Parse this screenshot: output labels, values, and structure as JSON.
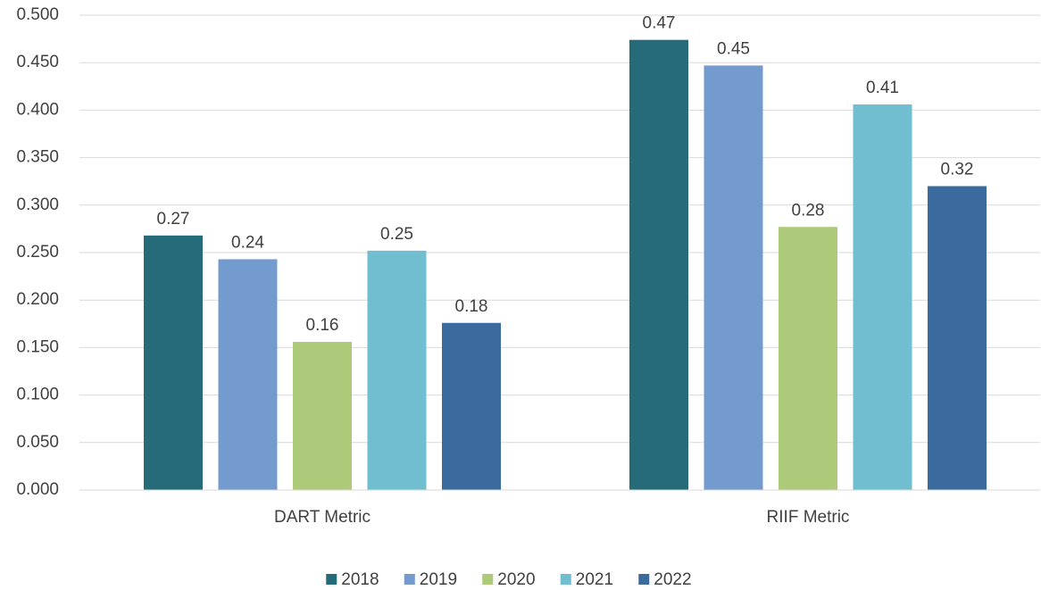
{
  "chart_data": {
    "type": "bar",
    "categories": [
      "DART Metric",
      "RIIF Metric"
    ],
    "series": [
      {
        "name": "2018",
        "color": "#266b7a",
        "values": [
          0.268,
          0.474
        ],
        "value_labels": [
          "0.27",
          "0.47"
        ]
      },
      {
        "name": "2019",
        "color": "#739bcf",
        "values": [
          0.243,
          0.447
        ],
        "value_labels": [
          "0.24",
          "0.45"
        ]
      },
      {
        "name": "2020",
        "color": "#adc97a",
        "values": [
          0.156,
          0.277
        ],
        "value_labels": [
          "0.16",
          "0.28"
        ]
      },
      {
        "name": "2021",
        "color": "#71bed1",
        "values": [
          0.252,
          0.406
        ],
        "value_labels": [
          "0.25",
          "0.41"
        ]
      },
      {
        "name": "2022",
        "color": "#3b6a9e",
        "values": [
          0.176,
          0.32
        ],
        "value_labels": [
          "0.18",
          "0.32"
        ]
      }
    ],
    "ylim": [
      0,
      0.5
    ],
    "yticks": [
      {
        "value": 0,
        "label": "0.000"
      },
      {
        "value": 0.05,
        "label": "0.050"
      },
      {
        "value": 0.1,
        "label": "0.100"
      },
      {
        "value": 0.15,
        "label": "0.150"
      },
      {
        "value": 0.2,
        "label": "0.200"
      },
      {
        "value": 0.25,
        "label": "0.250"
      },
      {
        "value": 0.3,
        "label": "0.300"
      },
      {
        "value": 0.35,
        "label": "0.350"
      },
      {
        "value": 0.4,
        "label": "0.400"
      },
      {
        "value": 0.45,
        "label": "0.450"
      },
      {
        "value": 0.5,
        "label": "0.500"
      }
    ],
    "grid": true,
    "legend": "bottom"
  }
}
